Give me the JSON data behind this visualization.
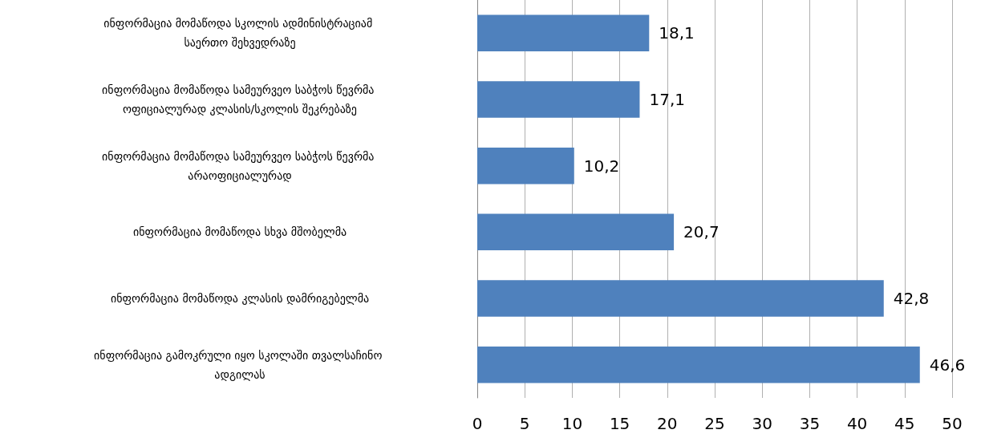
{
  "chart_data": {
    "type": "bar",
    "orientation": "horizontal",
    "categories": [
      "ინფორმაცია მომაწოდა სკოლის ადმინისტრაციამ საერთო შეხვედრაზე",
      "ინფორმაცია მომაწოდა სამეურვეო საბჭოს წევრმა ოფიციალურად კლასის/სკოლის შეკრებაზე",
      "ინფორმაცია მომაწოდა სამეურვეო საბჭოს წევრმა არაოფიციალურად",
      "ინფორმაცია მომაწოდა სხვა მშობელმა",
      "ინფორმაცია მომაწოდა კლასის დამრიგებელმა",
      "ინფორმაცია გამოკრული იყო სკოლაში თვალსაჩინო ადგილას"
    ],
    "values": [
      18.1,
      17.1,
      10.2,
      20.7,
      42.8,
      46.6
    ],
    "value_labels": [
      "18,1",
      "17,1",
      "10,2",
      "20,7",
      "42,8",
      "46,6"
    ],
    "color": "#4f81bd",
    "xlim": [
      0,
      50
    ],
    "xticks": [
      0,
      5,
      10,
      15,
      20,
      25,
      30,
      35,
      40,
      45,
      50
    ],
    "grid": "x"
  }
}
